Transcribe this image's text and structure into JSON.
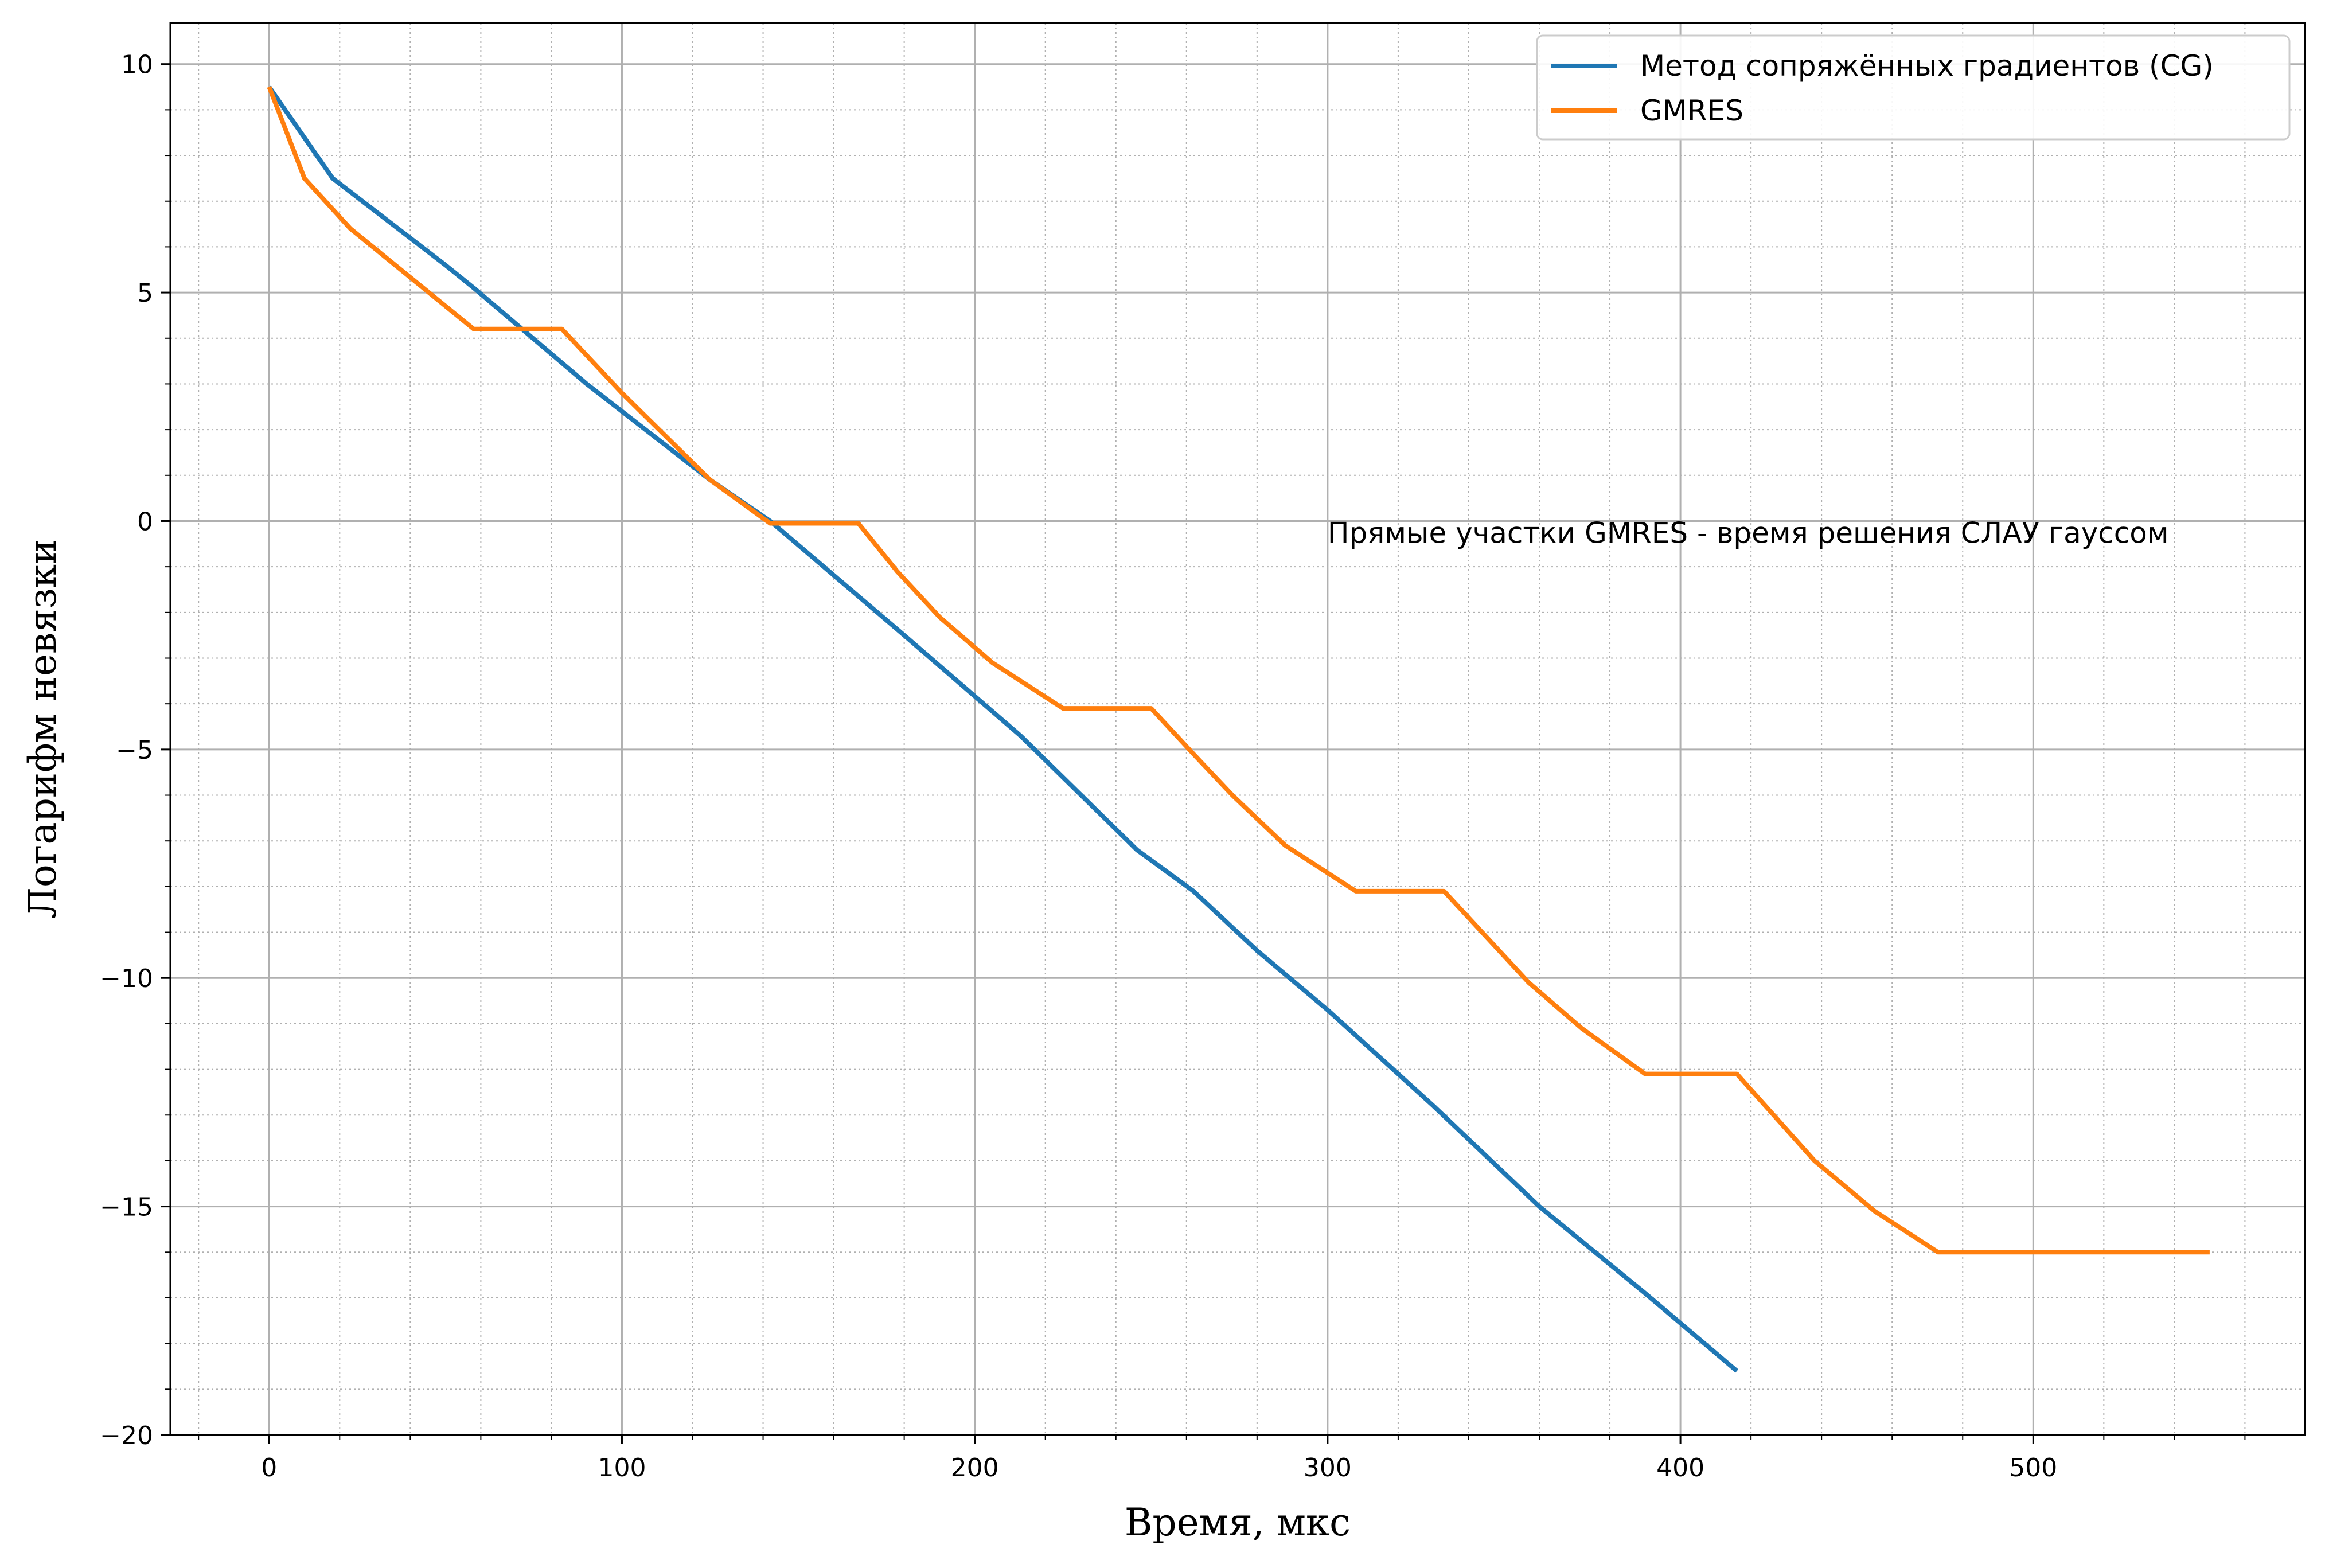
{
  "chart_data": {
    "type": "line",
    "title": "",
    "xlabel": "Время, мкс",
    "ylabel": "Логарифм невязки",
    "xlim": [
      -28,
      577
    ],
    "ylim": [
      -20,
      10.9
    ],
    "x_ticks": [
      0,
      100,
      200,
      300,
      400,
      500
    ],
    "y_ticks": [
      10,
      5,
      0,
      -5,
      -10,
      -15,
      -20
    ],
    "x_tick_labels": [
      "0",
      "100",
      "200",
      "300",
      "400",
      "500"
    ],
    "y_tick_labels": [
      "10",
      "5",
      "0",
      "−5",
      "−10",
      "−15",
      "−20"
    ],
    "grid": {
      "major": true,
      "minor": true
    },
    "legend_position": "top-right",
    "annotation": {
      "text": "Прямые участки GMRES - время решения СЛАУ гауссом",
      "x": 300,
      "y": -0.3
    },
    "series": [
      {
        "name": "Метод сопряжённых градиентов (CG)",
        "color": "#1f77b4",
        "x": [
          0,
          18,
          50,
          58,
          90,
          125,
          142,
          180,
          213,
          246,
          262,
          280,
          300,
          330,
          360,
          390,
          416
        ],
        "y": [
          9.5,
          7.5,
          5.6,
          5.1,
          3.0,
          0.9,
          0.0,
          -2.5,
          -4.7,
          -7.2,
          -8.1,
          -9.4,
          -10.7,
          -12.8,
          -15.0,
          -16.9,
          -18.6
        ]
      },
      {
        "name": "GMRES",
        "color": "#ff7f0e",
        "x": [
          0,
          10,
          23,
          58,
          83,
          100,
          125,
          142,
          167,
          178,
          190,
          205,
          225,
          250,
          262,
          273,
          288,
          308,
          333,
          357,
          372,
          390,
          416,
          438,
          455,
          473,
          550
        ],
        "y": [
          9.5,
          7.5,
          6.4,
          4.2,
          4.2,
          2.8,
          0.9,
          -0.05,
          -0.05,
          -1.1,
          -2.1,
          -3.1,
          -4.1,
          -4.1,
          -5.1,
          -6.0,
          -7.1,
          -8.1,
          -8.1,
          -10.1,
          -11.1,
          -12.1,
          -12.1,
          -14.0,
          -15.1,
          -16.0,
          -16.0
        ]
      }
    ]
  }
}
